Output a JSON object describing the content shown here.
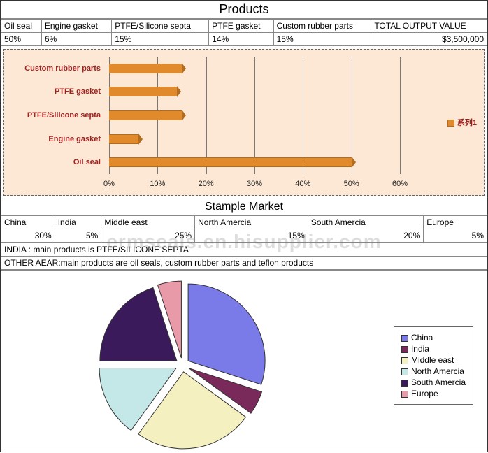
{
  "products": {
    "title": "Products",
    "headers": [
      "Oil seal",
      "Engine gasket",
      "PTFE/Silicone septa",
      "PTFE gasket",
      "Custom rubber parts",
      "TOTAL OUTPUT VALUE"
    ],
    "values": [
      "50%",
      "6%",
      "15%",
      "14%",
      "15%",
      "$3,500,000"
    ]
  },
  "barchart": {
    "type": "bar-horizontal",
    "background_color": "#fce8d4",
    "border_style": "dashed",
    "bar_color": "#e08a2c",
    "bar_border_color": "#b36b1f",
    "label_color": "#a02020",
    "gridline_color": "#777777",
    "legend_label": "系列1",
    "xlim": [
      0,
      60
    ],
    "xtick_step": 10,
    "xticklabels": [
      "0%",
      "10%",
      "20%",
      "30%",
      "40%",
      "50%",
      "60%"
    ],
    "categories": [
      "Custom rubber parts",
      "PTFE gasket",
      "PTFE/Silicone septa",
      "Engine gasket",
      "Oil seal"
    ],
    "values": [
      15,
      14,
      15,
      6,
      50
    ],
    "label_fontsize": 11,
    "tick_fontsize": 11
  },
  "market": {
    "title": "Stample Market",
    "headers": [
      "China",
      "India",
      "Middle east",
      "North Amercia",
      "South Amercia",
      "Europe"
    ],
    "values": [
      "30%",
      "5%",
      "25%",
      "15%",
      "20%",
      "5%"
    ]
  },
  "notes": {
    "line1": "INDIA : main products is PTFE/SILICONE SEPTA",
    "line2": "OTHER AEAR:main products are oil seals, custom rubber parts and teflon products"
  },
  "pie": {
    "type": "pie-exploded",
    "background_color": "#ffffff",
    "border_color": "#333333",
    "radius": 110,
    "explode_offset": 10,
    "slices": [
      {
        "label": "China",
        "value": 30,
        "color": "#7a7ae8"
      },
      {
        "label": "India",
        "value": 5,
        "color": "#7a2a5a"
      },
      {
        "label": "Middle east",
        "value": 25,
        "color": "#f5f0c0"
      },
      {
        "label": "North Amercia",
        "value": 15,
        "color": "#c4e8e8"
      },
      {
        "label": "South Amercia",
        "value": 20,
        "color": "#3a1a5a"
      },
      {
        "label": "Europe",
        "value": 5,
        "color": "#e89aa8"
      }
    ],
    "legend_fontsize": 12
  },
  "watermark": "ermseals.en.hisupplier.com"
}
